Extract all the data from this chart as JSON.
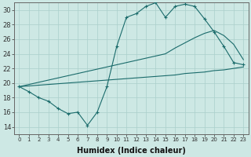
{
  "xlabel": "Humidex (Indice chaleur)",
  "ylabel": "",
  "xlim": [
    -0.5,
    23.5
  ],
  "ylim": [
    13,
    31
  ],
  "yticks": [
    14,
    16,
    18,
    20,
    22,
    24,
    26,
    28,
    30
  ],
  "xticks": [
    0,
    1,
    2,
    3,
    4,
    5,
    6,
    7,
    8,
    9,
    10,
    11,
    12,
    13,
    14,
    15,
    16,
    17,
    18,
    19,
    20,
    21,
    22,
    23
  ],
  "bg_color": "#cde8e4",
  "grid_color": "#aacfcb",
  "line_color": "#1a6b6b",
  "line1_x": [
    0,
    1,
    2,
    3,
    4,
    5,
    6,
    7,
    8,
    9,
    10,
    11,
    12,
    13,
    14,
    15,
    16,
    17,
    18,
    19,
    20,
    21,
    22,
    23
  ],
  "line1_y": [
    19.5,
    18.8,
    18.0,
    17.5,
    16.5,
    15.8,
    16.0,
    14.2,
    16.0,
    19.5,
    25.0,
    29.0,
    29.5,
    30.5,
    31.0,
    29.0,
    30.5,
    30.8,
    30.5,
    28.8,
    27.0,
    25.0,
    22.8,
    22.5
  ],
  "line2_x": [
    0,
    1,
    2,
    3,
    4,
    5,
    6,
    7,
    8,
    9,
    10,
    11,
    12,
    13,
    14,
    15,
    16,
    17,
    18,
    19,
    20,
    21,
    22,
    23
  ],
  "line2_y": [
    19.5,
    19.8,
    20.1,
    20.4,
    20.7,
    21.0,
    21.3,
    21.6,
    21.9,
    22.2,
    22.5,
    22.8,
    23.1,
    23.4,
    23.7,
    24.0,
    24.8,
    25.5,
    26.2,
    26.8,
    27.2,
    26.5,
    25.3,
    23.2
  ],
  "line3_x": [
    0,
    1,
    2,
    3,
    4,
    5,
    6,
    7,
    8,
    9,
    10,
    11,
    12,
    13,
    14,
    15,
    16,
    17,
    18,
    19,
    20,
    21,
    22,
    23
  ],
  "line3_y": [
    19.5,
    19.6,
    19.7,
    19.8,
    19.9,
    20.0,
    20.1,
    20.2,
    20.3,
    20.4,
    20.5,
    20.6,
    20.7,
    20.8,
    20.9,
    21.0,
    21.1,
    21.3,
    21.4,
    21.5,
    21.7,
    21.8,
    22.0,
    22.2
  ]
}
